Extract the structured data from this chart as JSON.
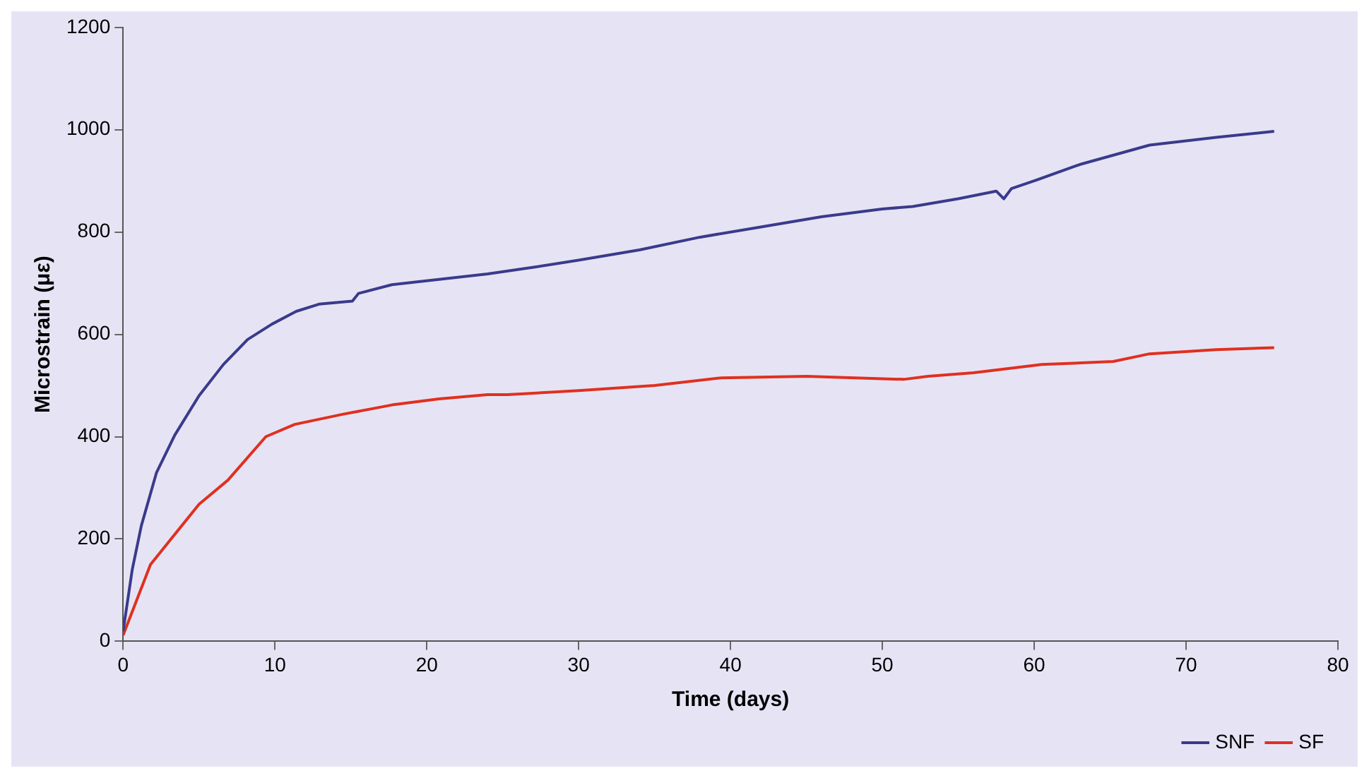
{
  "chart_data": {
    "type": "line",
    "xlabel": "Time (days)",
    "ylabel": "Microstrain (με)",
    "xlim": [
      0,
      80
    ],
    "xticks": [
      0,
      10,
      20,
      30,
      40,
      50,
      60,
      70,
      80
    ],
    "ylim": [
      0,
      1200
    ],
    "yticks": [
      0,
      200,
      400,
      600,
      800,
      1000,
      1200
    ],
    "grid": false,
    "legend": "bottom right",
    "marker": "none",
    "line_style": "solid",
    "series": [
      {
        "name": "SNF",
        "color": "#3a3a8c",
        "x": [
          0,
          0.6,
          1.2,
          2.2,
          3.4,
          5,
          6.6,
          8.2,
          9.8,
          11.4,
          12.9,
          15.1,
          15.5,
          17.7,
          24,
          27.2,
          30,
          34,
          38,
          42,
          46,
          50,
          52,
          55,
          57.5,
          58,
          58.5,
          60,
          63,
          67.6,
          72,
          75.8
        ],
        "values": [
          20,
          140,
          226,
          330,
          403,
          480,
          541,
          590,
          620,
          645,
          659,
          665,
          680,
          697,
          718,
          732,
          745,
          765,
          790,
          810,
          830,
          845,
          850,
          865,
          880,
          865,
          885,
          900,
          932,
          970,
          985,
          997
        ]
      },
      {
        "name": "SF",
        "color": "#e03020",
        "x": [
          0,
          1.8,
          5,
          6.9,
          9.4,
          11.3,
          14.5,
          17.7,
          20.8,
          24,
          25.3,
          30,
          35,
          39.4,
          45,
          51.4,
          53,
          56,
          60.5,
          65.2,
          67.6,
          72,
          75.8
        ],
        "values": [
          12,
          150,
          268,
          315,
          400,
          424,
          444,
          462,
          474,
          482,
          482,
          490,
          500,
          515,
          518,
          512,
          518,
          525,
          541,
          547,
          562,
          570,
          574
        ]
      }
    ]
  }
}
